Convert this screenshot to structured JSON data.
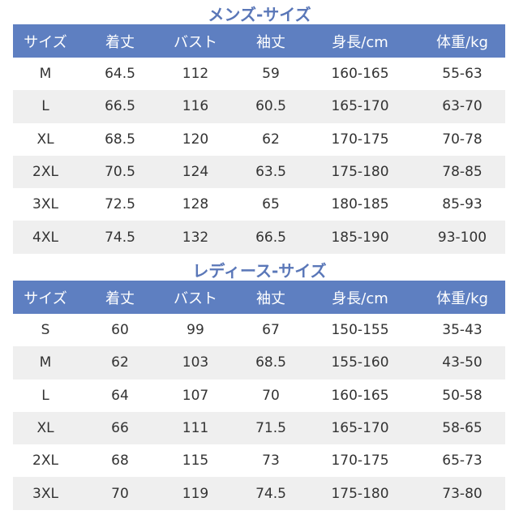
{
  "mens": {
    "title": "メンズ-サイズ",
    "headers": [
      "サイズ",
      "着丈",
      "バスト",
      "袖丈",
      "身長/cm",
      "体重/kg"
    ],
    "rows": [
      [
        "M",
        "64.5",
        "112",
        "59",
        "160-165",
        "55-63"
      ],
      [
        "L",
        "66.5",
        "116",
        "60.5",
        "165-170",
        "63-70"
      ],
      [
        "XL",
        "68.5",
        "120",
        "62",
        "170-175",
        "70-78"
      ],
      [
        "2XL",
        "70.5",
        "124",
        "63.5",
        "175-180",
        "78-85"
      ],
      [
        "3XL",
        "72.5",
        "128",
        "65",
        "180-185",
        "85-93"
      ],
      [
        "4XL",
        "74.5",
        "132",
        "66.5",
        "185-190",
        "93-100"
      ]
    ]
  },
  "ladies": {
    "title": "レディース-サイズ",
    "headers": [
      "サイズ",
      "着丈",
      "バスト",
      "袖丈",
      "身長/cm",
      "体重/kg"
    ],
    "rows": [
      [
        "S",
        "60",
        "99",
        "67",
        "150-155",
        "35-43"
      ],
      [
        "M",
        "62",
        "103",
        "68.5",
        "155-160",
        "43-50"
      ],
      [
        "L",
        "64",
        "107",
        "70",
        "160-165",
        "50-58"
      ],
      [
        "XL",
        "66",
        "111",
        "71.5",
        "165-170",
        "58-65"
      ],
      [
        "2XL",
        "68",
        "115",
        "73",
        "170-175",
        "65-73"
      ],
      [
        "3XL",
        "70",
        "119",
        "74.5",
        "175-180",
        "73-80"
      ]
    ]
  },
  "colors": {
    "header_bg": "#5e7fc1",
    "title": "#5a77b8",
    "stripe": "#efefef"
  }
}
